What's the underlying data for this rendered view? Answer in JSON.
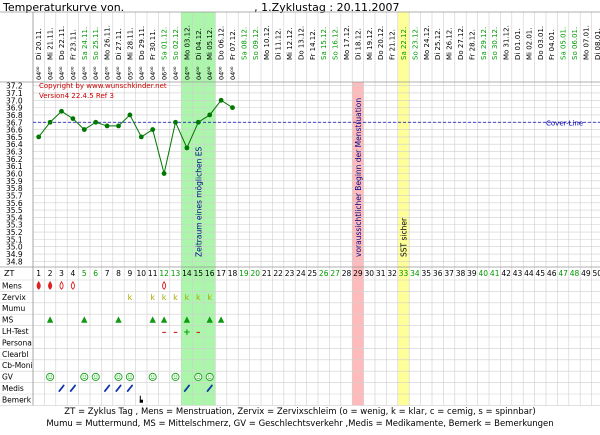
{
  "header": {
    "title": "Temperaturkurve von.",
    "cycle_info": ", 1.Zyklustag : 20.11.2007"
  },
  "chart_info": {
    "copyright": "Copyright by www.wunschkinder.net",
    "version": "Version4 22.4.5 Ref 3",
    "cover_line_label": "Cover-Line",
    "zone_labels": {
      "fertile": "Zeitraum eines möglichen ES",
      "menstruation": "voraussichtlicher Beginn der Menstruation",
      "sst": "SST sicher"
    }
  },
  "dates": [
    "Di 20.11.",
    "Mi 21.11.",
    "Do 22.11.",
    "Fr 23.11.",
    "Sa 24.11.",
    "So 25.11.",
    "Mo 26.11.",
    "Di 27.11.",
    "Mi 28.11.",
    "Do 29.11.",
    "Fr 30.11.",
    "Sa 01.12.",
    "So 02.12.",
    "Mo 03.12.",
    "Di 04.12.",
    "Mi 05.12.",
    "Do 06.12.",
    "Fr 07.12.",
    "Sa 08.12.",
    "So 09.12.",
    "Mo 10.12.",
    "Di 11.12.",
    "Mi 12.12.",
    "Do 13.12.",
    "Fr 14.12.",
    "Sa 15.12.",
    "So 16.12.",
    "Mo 17.12.",
    "Di 18.12.",
    "Mi 19.12.",
    "Do 20.12.",
    "Fr 21.12.",
    "Sa 22.12.",
    "So 23.12.",
    "Mo 24.12.",
    "Di 25.12.",
    "Mi 26.12.",
    "Do 27.12.",
    "Fr 28.12.",
    "Sa 29.12.",
    "So 30.12.",
    "Mo 31.12.",
    "Di 01.01.",
    "Mi 02.01.",
    "Do 03.01.",
    "Fr 04.01.",
    "Sa 05.01.",
    "So 06.01.",
    "Mo 07.01.",
    "Di 08.01."
  ],
  "times": [
    "04⁰⁰",
    "04⁰⁰",
    "04⁰⁰",
    "04⁰⁰",
    "04⁰⁰",
    "04⁰⁰",
    "04⁰⁰",
    "04⁰⁰",
    "05⁰⁰",
    "04⁰⁰",
    "04⁰⁰",
    "06³⁰",
    "04⁰⁰",
    "04⁰⁰",
    "04⁰⁰",
    "04⁰⁰",
    "04⁰⁰",
    "04⁰⁰"
  ],
  "chart_data": {
    "type": "line",
    "title": "",
    "xlabel": "ZT",
    "ylabel": "",
    "ylim": [
      34.75,
      37.25
    ],
    "y_ticks": [
      "37.2",
      "37.1",
      "37.0",
      "36.9",
      "36.8",
      "36.7",
      "36.6",
      "36.5",
      "36.4",
      "36.3",
      "36.2",
      "36.1",
      "36.0",
      "35.9",
      "35.8",
      "35.7",
      "35.6",
      "35.5",
      "35.4",
      "35.3",
      "35.2",
      "35.1",
      "35.0",
      "34.9",
      "34.8"
    ],
    "x": [
      1,
      2,
      3,
      4,
      5,
      6,
      7,
      8,
      9,
      10,
      11,
      12,
      13,
      14,
      15,
      16,
      17,
      18
    ],
    "values": [
      36.5,
      36.7,
      36.85,
      36.75,
      36.6,
      36.7,
      36.65,
      36.65,
      36.8,
      36.5,
      36.6,
      36.0,
      36.7,
      36.35,
      36.7,
      36.8,
      37.0,
      36.9
    ],
    "cover_line": 36.7,
    "zt_labels": [
      "1",
      "2",
      "3",
      "4",
      "5",
      "6",
      "7",
      "8",
      "9",
      "10",
      "11",
      "12",
      "13",
      "14",
      "15",
      "16",
      "17",
      "18",
      "19",
      "20",
      "21",
      "22",
      "23",
      "24",
      "25",
      "26",
      "27",
      "28",
      "29",
      "30",
      "31",
      "32",
      "33",
      "34",
      "35",
      "36",
      "37",
      "38",
      "39",
      "40",
      "41",
      "42",
      "43",
      "44",
      "45",
      "46",
      "47",
      "48",
      "49",
      "50"
    ]
  },
  "row_labels": [
    "Mens",
    "Zervix",
    "Mumu",
    "MS",
    "LH-Test",
    "Persona",
    "Clearbl",
    "Cb-Moni",
    "GV",
    "Medis",
    "Bemerk"
  ],
  "symbols": {
    "mens": [
      {
        "day": 1,
        "sym": "drop",
        "color": "#dd2222"
      },
      {
        "day": 2,
        "sym": "drop",
        "color": "#dd2222"
      },
      {
        "day": 3,
        "sym": "drop-o",
        "color": "#dd2222"
      },
      {
        "day": 4,
        "sym": "drop-o",
        "color": "#dd2222"
      },
      {
        "day": 12,
        "sym": "drop-o",
        "color": "#dd2222"
      }
    ],
    "zervix": [
      {
        "day": 9,
        "text": "k"
      },
      {
        "day": 11,
        "text": "k"
      },
      {
        "day": 12,
        "text": "k"
      },
      {
        "day": 13,
        "text": "k"
      },
      {
        "day": 14,
        "text": "k"
      },
      {
        "day": 15,
        "text": "k"
      },
      {
        "day": 16,
        "text": "k"
      }
    ],
    "ms": [
      {
        "day": 2,
        "sym": "triangle"
      },
      {
        "day": 5,
        "sym": "triangle"
      },
      {
        "day": 8,
        "sym": "triangle"
      },
      {
        "day": 11,
        "sym": "triangle"
      },
      {
        "day": 12,
        "sym": "triangle"
      },
      {
        "day": 14,
        "sym": "triangle"
      },
      {
        "day": 16,
        "sym": "triangle"
      },
      {
        "day": 17,
        "sym": "triangle"
      }
    ],
    "lh": [
      {
        "day": 12,
        "text": "–"
      },
      {
        "day": 13,
        "text": "–"
      },
      {
        "day": 14,
        "text": "+"
      },
      {
        "day": 15,
        "text": "–"
      }
    ],
    "gv": [
      2,
      5,
      6,
      8,
      9,
      11,
      13,
      15,
      16
    ],
    "medis": [
      3,
      4,
      7,
      8,
      9,
      14,
      16
    ],
    "bemerk": [
      10
    ]
  },
  "colors": {
    "fertile": "#66ee66",
    "menstruation": "#ffbbbb",
    "sst": "#ffff77",
    "line": "#007700",
    "cover": "#0000aa",
    "weekend": "#009900",
    "red_text": "#cc0000",
    "zervix": "#aaaa00"
  },
  "footer": {
    "line1": "ZT = Zyklus Tag , Mens = Menstruation, Zervix = Zervixschleim (o = wenig, k = klar, c = cemig, s = spinnbar)",
    "line2": "Mumu = Muttermund, MS = Mittelschmerz, GV = Geschlechtsverkehr ,Medis = Medikamente, Bemerk = Bemerkungen"
  }
}
